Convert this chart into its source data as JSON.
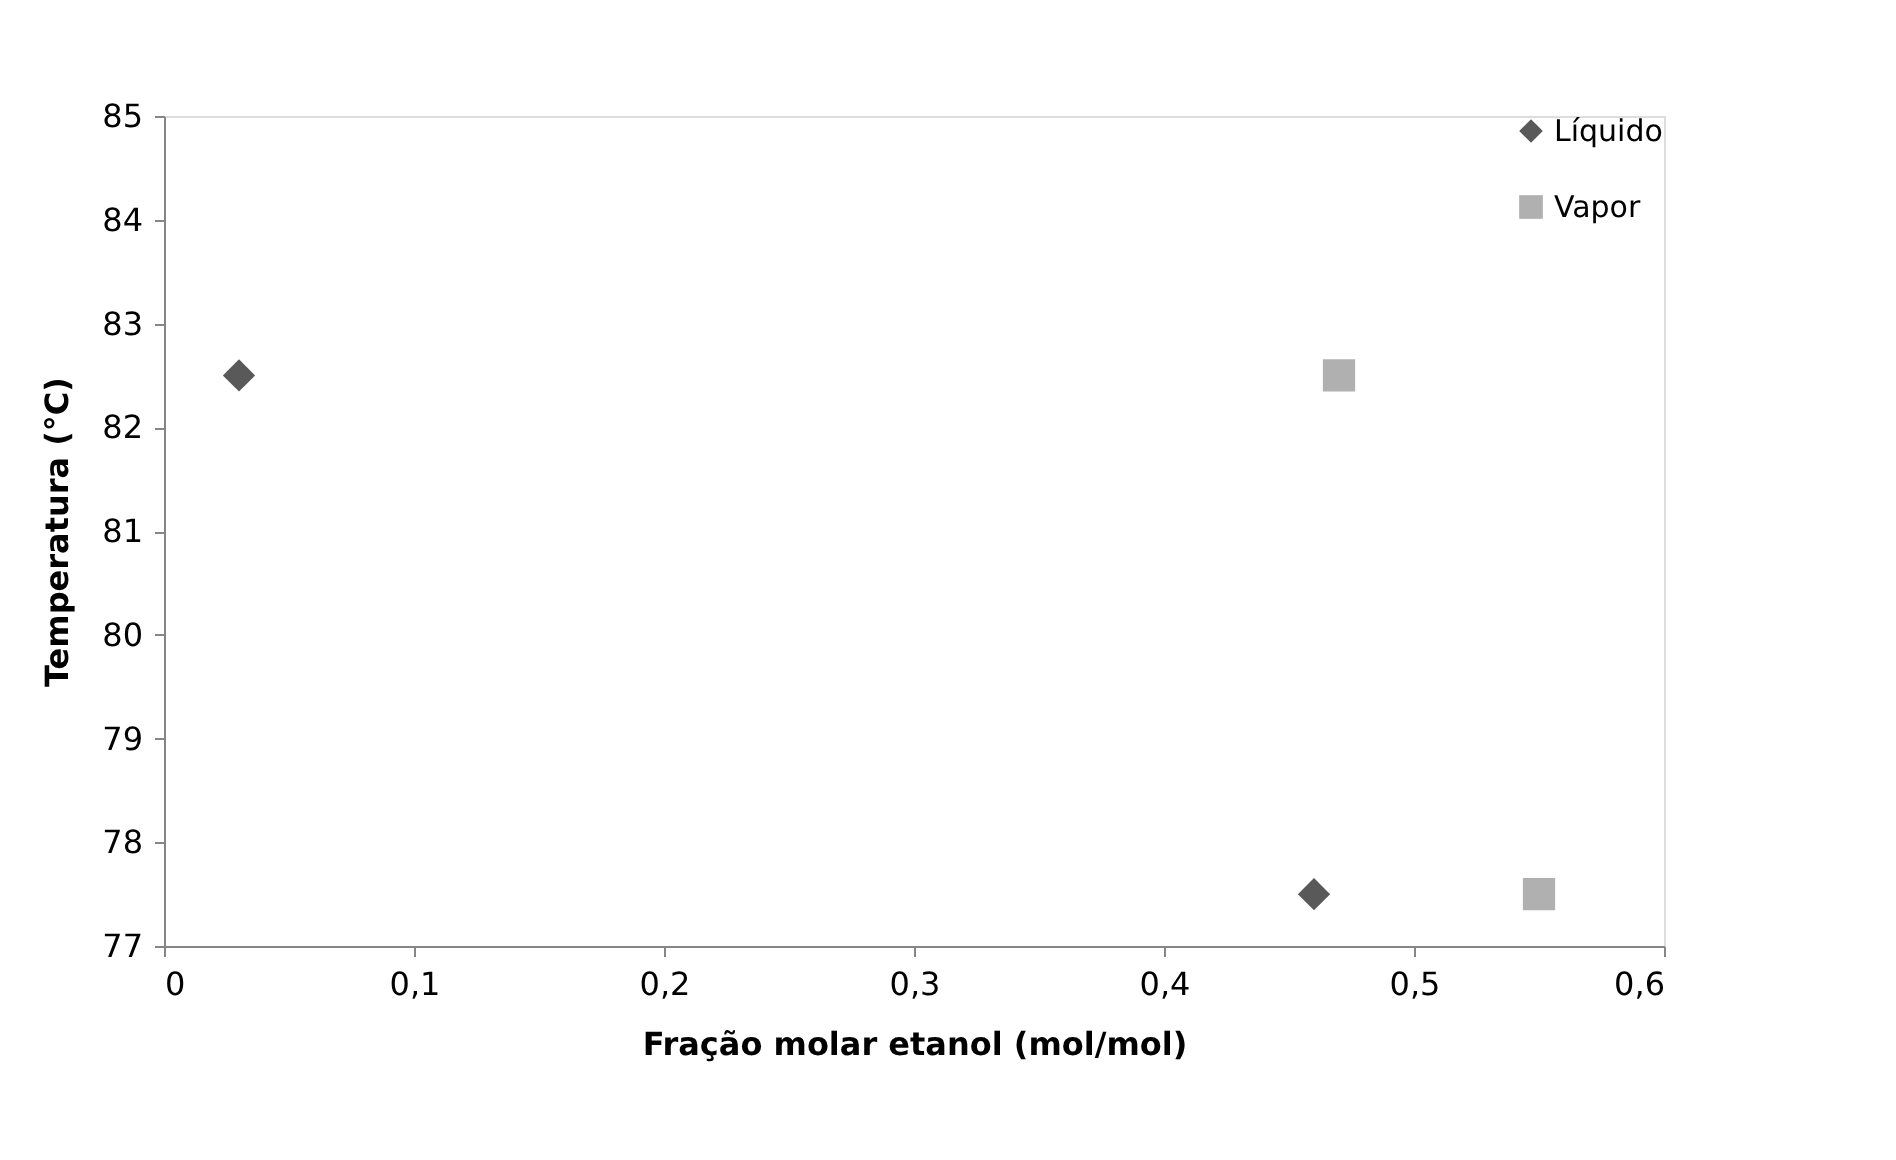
{
  "chart_data": {
    "type": "scatter",
    "xlabel": "Fração molar etanol (mol/mol)",
    "ylabel": "Temperatura (°C)",
    "series": [
      {
        "name": "Líquido",
        "color": "#595959",
        "marker": "diamond",
        "x": [
          0.03,
          0.46
        ],
        "values": [
          82.5,
          77.5
        ]
      },
      {
        "name": "Vapor",
        "color": "#b0b0b0",
        "marker": "square",
        "x": [
          0.47,
          0.55
        ],
        "values": [
          82.5,
          77.5
        ]
      }
    ],
    "xlim": [
      0,
      0.6
    ],
    "xticks": [
      {
        "value": 0,
        "label": "0"
      },
      {
        "value": 0.1,
        "label": "0,1"
      },
      {
        "value": 0.2,
        "label": "0,2"
      },
      {
        "value": 0.3,
        "label": "0,3"
      },
      {
        "value": 0.4,
        "label": "0,4"
      },
      {
        "value": 0.5,
        "label": "0,5"
      },
      {
        "value": 0.6,
        "label": "0,6"
      }
    ],
    "ylim": [
      77,
      85
    ],
    "yticks": [
      77,
      78,
      79,
      80,
      81,
      82,
      83,
      84,
      85
    ],
    "grid": false,
    "legend": "top right"
  }
}
